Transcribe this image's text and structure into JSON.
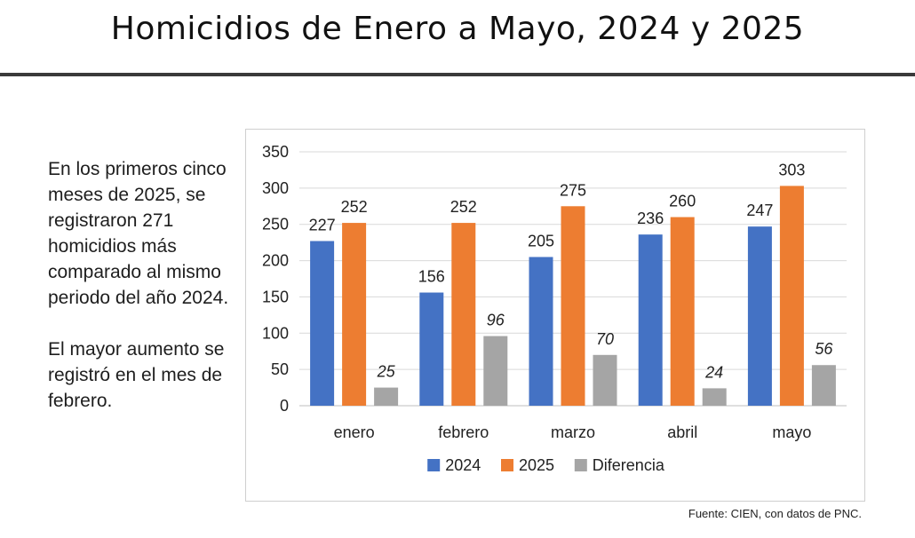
{
  "header": {
    "title": "Homicidios de Enero a Mayo, 2024 y 2025"
  },
  "side_text": {
    "paragraph1": "En los primeros cinco meses de 2025, se registraron 271 homicidios más comparado al mismo periodo del año 2024.",
    "paragraph2": "El mayor aumento se registró en el mes de febrero."
  },
  "source": "Fuente: CIEN, con datos de PNC.",
  "colors": {
    "series_2024": "#4472C4",
    "series_2025": "#ED7D31",
    "series_diff": "#A5A5A5",
    "grid": "#d9d9d9",
    "axis_text": "#222222"
  },
  "chart_data": {
    "type": "bar",
    "categories": [
      "enero",
      "febrero",
      "marzo",
      "abril",
      "mayo"
    ],
    "series": [
      {
        "name": "2024",
        "values": [
          227,
          156,
          205,
          236,
          247
        ]
      },
      {
        "name": "2025",
        "values": [
          252,
          252,
          275,
          260,
          303
        ]
      },
      {
        "name": "Diferencia",
        "values": [
          25,
          96,
          70,
          24,
          56
        ]
      }
    ],
    "ylim": [
      0,
      350
    ],
    "yticks": [
      0,
      50,
      100,
      150,
      200,
      250,
      300,
      350
    ],
    "grid": true,
    "legend_position": "bottom",
    "data_labels": true,
    "data_labels_italic_series": [
      "Diferencia"
    ]
  }
}
